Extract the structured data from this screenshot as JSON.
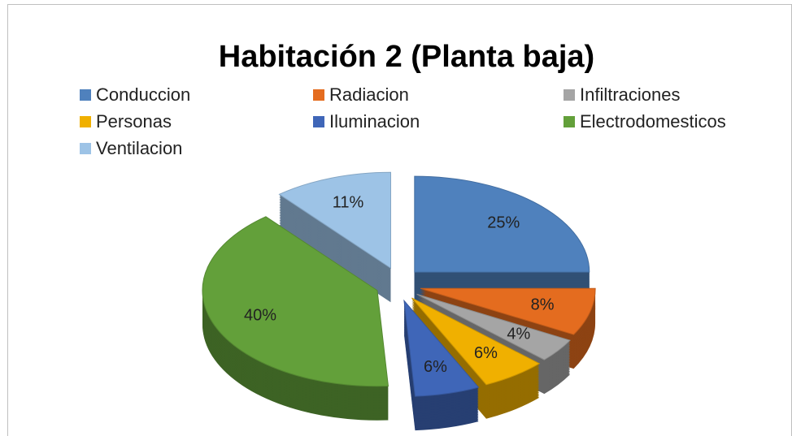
{
  "chart_data": {
    "type": "pie",
    "title": "Habitación 2 (Planta baja)",
    "categories": [
      "Conduccion",
      "Radiacion",
      "Infiltraciones",
      "Personas",
      "Iluminacion",
      "Electrodomesticos",
      "Ventilacion"
    ],
    "values": [
      25,
      8,
      4,
      6,
      6,
      40,
      11
    ],
    "value_labels": [
      "25%",
      "8%",
      "4%",
      "6%",
      "6%",
      "40%",
      "11%"
    ],
    "colors": [
      "#4f81bd",
      "#e46c1f",
      "#a5a5a5",
      "#f0b000",
      "#3f66b8",
      "#63a03a",
      "#9dc3e6"
    ],
    "legend": "top"
  }
}
